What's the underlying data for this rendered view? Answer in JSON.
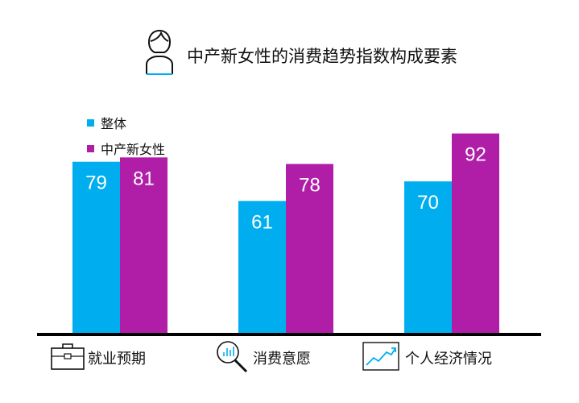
{
  "title": "中产新女性的消费趋势指数构成要素",
  "icons": {
    "title": "woman-avatar-icon",
    "categories": [
      "briefcase-icon",
      "magnifier-chart-icon",
      "trend-line-icon"
    ]
  },
  "colors": {
    "overall": "#00AEEF",
    "new_women": "#B01EA8",
    "axis": "#000000"
  },
  "chart_data": {
    "type": "bar",
    "title": "中产新女性的消费趋势指数构成要素",
    "categories": [
      "就业预期",
      "消费意愿",
      "个人经济情况"
    ],
    "series": [
      {
        "name": "整体",
        "values": [
          79,
          61,
          70
        ]
      },
      {
        "name": "中产新女性",
        "values": [
          81,
          78,
          92
        ]
      }
    ],
    "ylim": [
      0,
      100
    ],
    "data_labels": true,
    "legend": "top-left",
    "grid": false
  }
}
